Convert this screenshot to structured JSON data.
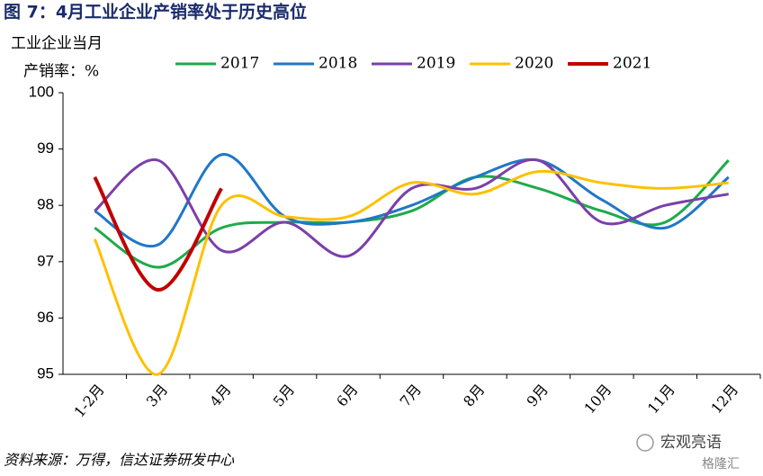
{
  "chart_data": {
    "type": "line",
    "title": "图 7：4月工业企业产销率处于历史高位",
    "ylabel_lines": [
      "工业企业当月",
      "产销率：%"
    ],
    "categories": [
      "1-2月",
      "3月",
      "4月",
      "5月",
      "6月",
      "7月",
      "8月",
      "9月",
      "10月",
      "11月",
      "12月"
    ],
    "series": [
      {
        "name": "2017",
        "color": "#1faa4b",
        "values": [
          97.6,
          96.9,
          97.6,
          97.7,
          97.7,
          97.9,
          98.5,
          98.3,
          97.9,
          97.7,
          98.8
        ]
      },
      {
        "name": "2018",
        "color": "#1f77c8",
        "values": [
          97.9,
          97.3,
          98.9,
          97.8,
          97.7,
          98.0,
          98.5,
          98.8,
          98.1,
          97.6,
          98.5
        ]
      },
      {
        "name": "2019",
        "color": "#7b3fa8",
        "values": [
          97.9,
          98.8,
          97.2,
          97.7,
          97.1,
          98.3,
          98.3,
          98.8,
          97.7,
          98.0,
          98.2
        ]
      },
      {
        "name": "2020",
        "color": "#ffc000",
        "values": [
          97.4,
          95.0,
          98.0,
          97.8,
          97.8,
          98.4,
          98.2,
          98.6,
          98.4,
          98.3,
          98.4
        ]
      },
      {
        "name": "2021",
        "color": "#c00000",
        "values": [
          98.5,
          96.5,
          98.3,
          null,
          null,
          null,
          null,
          null,
          null,
          null,
          null
        ]
      }
    ],
    "ylim": [
      95,
      100
    ],
    "yticks": [
      95,
      96,
      97,
      98,
      99,
      100
    ],
    "source": "资料来源：万得，信达证券研发中心",
    "watermark": "宏观亮语",
    "logo": "格隆汇"
  }
}
